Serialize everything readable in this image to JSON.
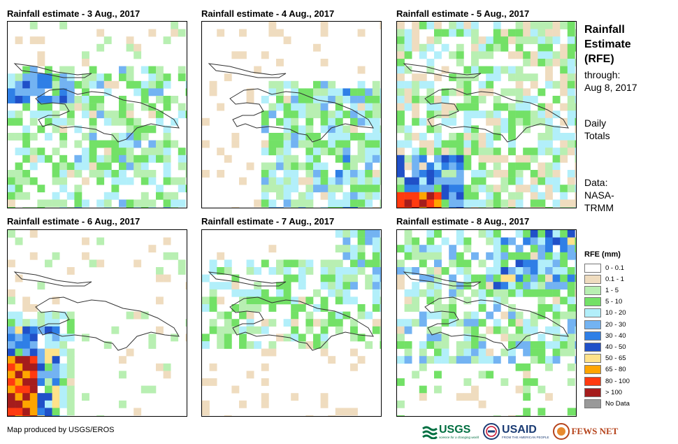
{
  "panels": [
    {
      "title": "Rainfall estimate - 3 Aug., 2017"
    },
    {
      "title": "Rainfall estimate - 4 Aug., 2017"
    },
    {
      "title": "Rainfall estimate - 5 Aug., 2017"
    },
    {
      "title": "Rainfall estimate - 6 Aug., 2017"
    },
    {
      "title": "Rainfall estimate - 7 Aug., 2017"
    },
    {
      "title": "Rainfall estimate - 8 Aug., 2017"
    }
  ],
  "side": {
    "title_lines": [
      "Rainfall",
      "Estimate",
      "(RFE)"
    ],
    "through_label": "through:",
    "through_date": "Aug 8, 2017",
    "daily_lines": [
      "Daily",
      "Totals"
    ],
    "data_lines": [
      "Data:",
      "NASA-",
      "TRMM"
    ]
  },
  "legend": {
    "title": "RFE (mm)",
    "items": [
      {
        "label": "0 - 0.1",
        "color": "#ffffff"
      },
      {
        "label": "0.1 - 1",
        "color": "#efdcbf"
      },
      {
        "label": "1 - 5",
        "color": "#b8efb2"
      },
      {
        "label": "5 - 10",
        "color": "#73e167"
      },
      {
        "label": "10 - 20",
        "color": "#b2effa"
      },
      {
        "label": "20 - 30",
        "color": "#73b3f2"
      },
      {
        "label": "30 - 40",
        "color": "#2f7fe6"
      },
      {
        "label": "40 - 50",
        "color": "#2050c8"
      },
      {
        "label": "50 - 65",
        "color": "#ffe28a"
      },
      {
        "label": "65 - 80",
        "color": "#ffa500"
      },
      {
        "label": "80 - 100",
        "color": "#ff3a10"
      },
      {
        "label": "> 100",
        "color": "#a51c1c"
      },
      {
        "label": "No Data",
        "color": "#999999"
      }
    ]
  },
  "footer": {
    "credit": "Map produced by USGS/EROS"
  },
  "logos": {
    "usgs": "USGS",
    "usgs_tagline": "science for a changing world",
    "usaid": "USAID",
    "usaid_tagline": "FROM THE AMERICAN PEOPLE",
    "fews": "FEWS NET"
  }
}
